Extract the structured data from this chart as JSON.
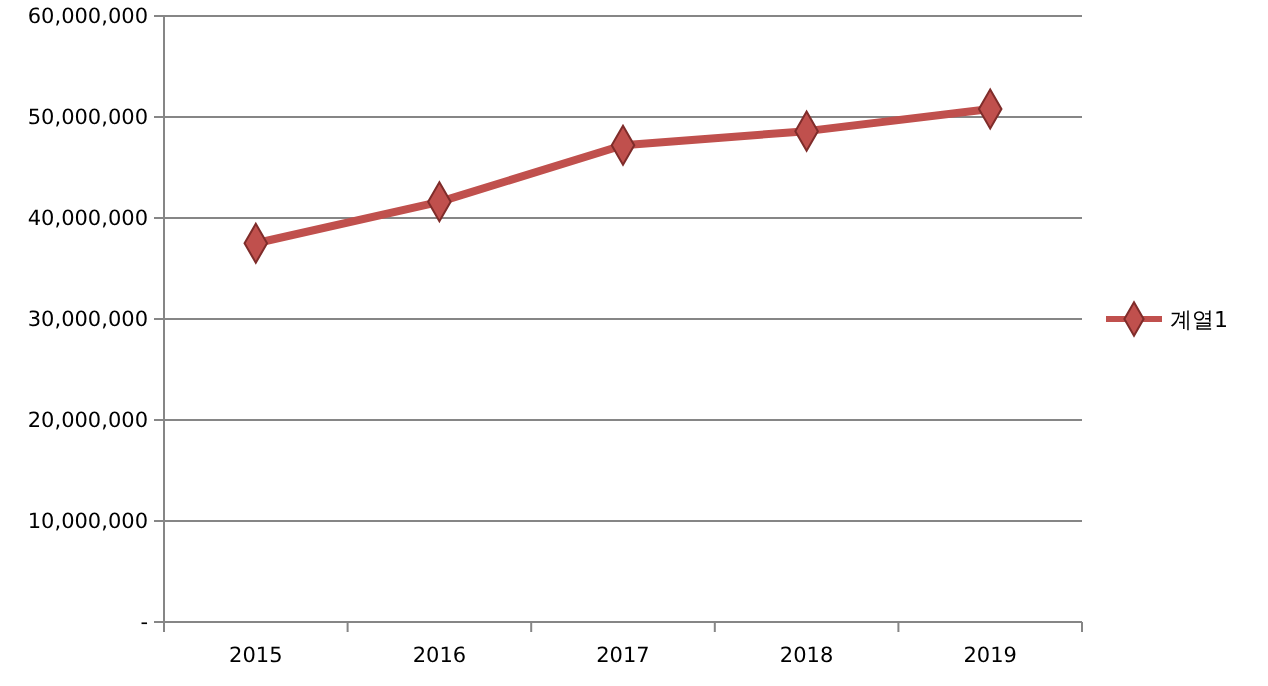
{
  "chart_data": {
    "type": "line",
    "categories": [
      "2015",
      "2016",
      "2017",
      "2018",
      "2019"
    ],
    "series": [
      {
        "name": "계열1",
        "color": "#c0504d",
        "values": [
          37500000,
          41600000,
          47200000,
          48600000,
          50800000
        ]
      }
    ],
    "ylim": [
      0,
      60000000
    ],
    "yticks": [
      {
        "value": 0,
        "label": "-"
      },
      {
        "value": 10000000,
        "label": "10,000,000"
      },
      {
        "value": 20000000,
        "label": "20,000,000"
      },
      {
        "value": 30000000,
        "label": "30,000,000"
      },
      {
        "value": 40000000,
        "label": "40,000,000"
      },
      {
        "value": 50000000,
        "label": "50,000,000"
      },
      {
        "value": 60000000,
        "label": "60,000,000"
      }
    ],
    "grid": "y",
    "legend": "right",
    "marker": "diamond",
    "line_style": "solid"
  }
}
